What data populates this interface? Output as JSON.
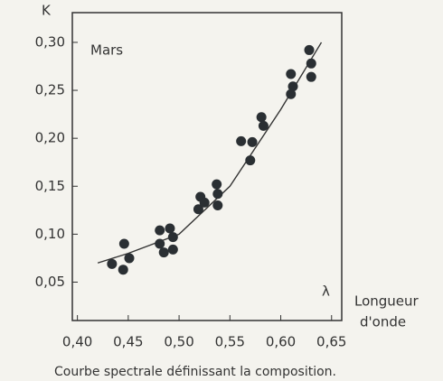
{
  "chart_data": {
    "type": "scatter",
    "title": "Mars",
    "ylabel": "K",
    "xsymbol": "λ",
    "xlabel": [
      "Longueur",
      "d'onde"
    ],
    "caption": "Courbe spectrale définissant la composition.",
    "color": "#2a2f33",
    "x": [
      0.434,
      0.446,
      0.445,
      0.451,
      0.481,
      0.481,
      0.485,
      0.491,
      0.494,
      0.494,
      0.521,
      0.519,
      0.525,
      0.537,
      0.538,
      0.538,
      0.561,
      0.57,
      0.572,
      0.581,
      0.583,
      0.61,
      0.612,
      0.61,
      0.628,
      0.63,
      0.63
    ],
    "values": [
      0.069,
      0.09,
      0.063,
      0.075,
      0.104,
      0.09,
      0.081,
      0.106,
      0.097,
      0.084,
      0.139,
      0.126,
      0.133,
      0.152,
      0.142,
      0.13,
      0.197,
      0.177,
      0.196,
      0.222,
      0.213,
      0.267,
      0.254,
      0.246,
      0.292,
      0.278,
      0.264
    ],
    "curve": {
      "x": [
        0.42,
        0.45,
        0.5,
        0.55,
        0.6,
        0.64
      ],
      "y": [
        0.07,
        0.08,
        0.1,
        0.15,
        0.23,
        0.3
      ]
    },
    "xlim": [
      0.395,
      0.66
    ],
    "ylim": [
      0.01,
      0.331
    ],
    "xticks": [
      {
        "value": 0.4,
        "label": "0,40"
      },
      {
        "value": 0.45,
        "label": "0,45"
      },
      {
        "value": 0.5,
        "label": "0,50"
      },
      {
        "value": 0.55,
        "label": "0,55"
      },
      {
        "value": 0.6,
        "label": "0,60"
      },
      {
        "value": 0.65,
        "label": "0,65"
      }
    ],
    "yticks": [
      {
        "value": 0.05,
        "label": "0,05"
      },
      {
        "value": 0.1,
        "label": "0,10"
      },
      {
        "value": 0.15,
        "label": "0,15"
      },
      {
        "value": 0.2,
        "label": "0,20"
      },
      {
        "value": 0.25,
        "label": "0,25"
      },
      {
        "value": 0.3,
        "label": "0,30"
      }
    ]
  }
}
